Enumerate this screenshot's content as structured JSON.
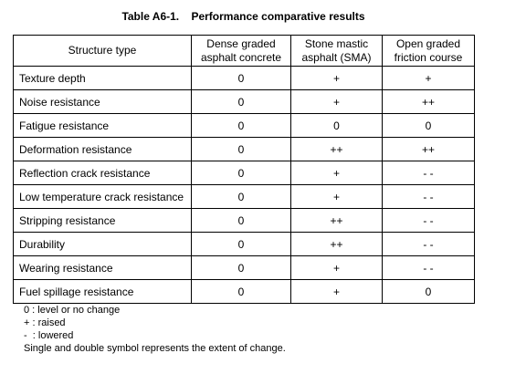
{
  "title": "Table A6-1.    Performance comparative results",
  "table": {
    "header": [
      [
        "Structure type"
      ],
      [
        "Dense graded",
        "asphalt concrete"
      ],
      [
        "Stone mastic",
        "asphalt (SMA)"
      ],
      [
        "Open graded",
        "friction course"
      ]
    ],
    "rows": [
      [
        "Texture depth",
        "0",
        "+",
        "+"
      ],
      [
        "Noise resistance",
        "0",
        "+",
        "++"
      ],
      [
        "Fatigue resistance",
        "0",
        "0",
        "0"
      ],
      [
        "Deformation resistance",
        "0",
        "++",
        "++"
      ],
      [
        "Reflection crack resistance",
        "0",
        "+",
        "- -"
      ],
      [
        "Low temperature crack resistance",
        "0",
        "+",
        "- -"
      ],
      [
        "Stripping resistance",
        "0",
        "++",
        "- -"
      ],
      [
        "Durability",
        "0",
        "++",
        "- -"
      ],
      [
        "Wearing resistance",
        "0",
        "+",
        "- -"
      ],
      [
        "Fuel spillage resistance",
        "0",
        "+",
        "0"
      ]
    ]
  },
  "notes": [
    "0 : level or no change",
    "+ : raised",
    "-  : lowered",
    "Single and double symbol represents the extent of change."
  ]
}
